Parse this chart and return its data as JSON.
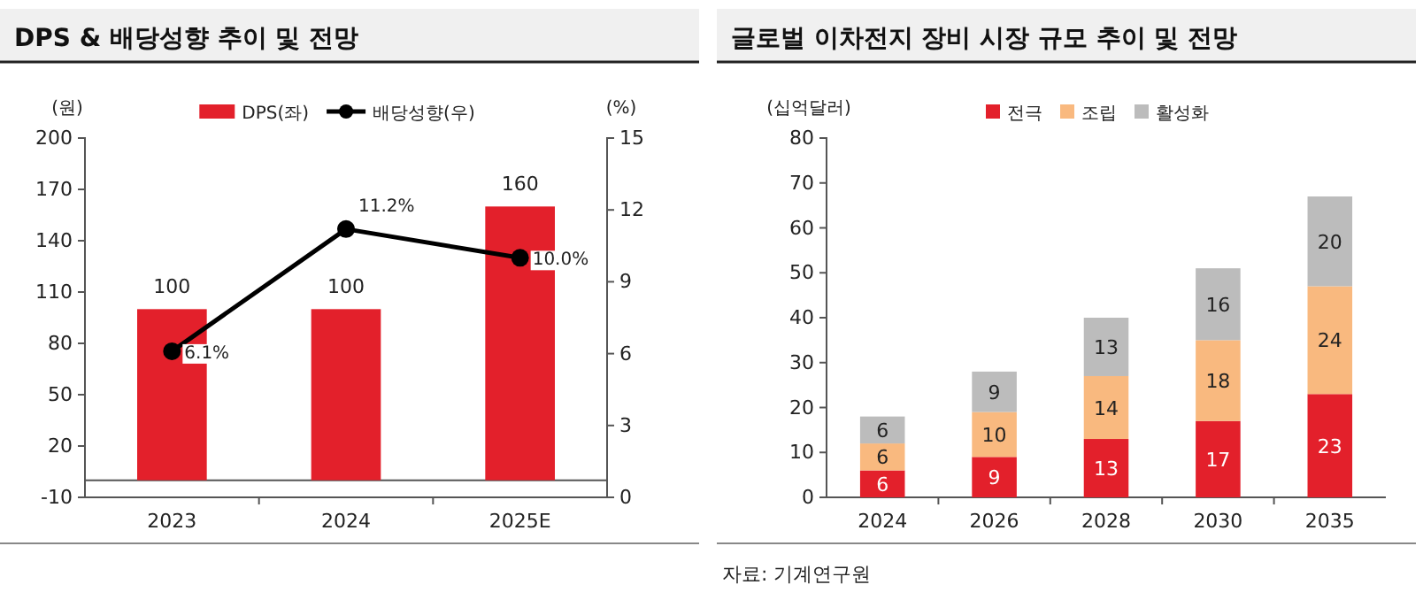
{
  "chart_data": [
    {
      "type": "bar",
      "title": "DPS & 배당성향 추이 및 전망",
      "ylabel": "(원)",
      "y2label": "(%)",
      "categories": [
        "2023",
        "2024",
        "2025E"
      ],
      "series": [
        {
          "name": "DPS(좌)",
          "type": "bar",
          "color": "#e3202b",
          "values": [
            100,
            100,
            160
          ],
          "value_labels": [
            "100",
            "100",
            "160"
          ]
        },
        {
          "name": "배당성향(우)",
          "type": "line",
          "axis": "y2",
          "color": "#000000",
          "values": [
            6.1,
            11.2,
            10.0
          ],
          "value_labels": [
            "6.1%",
            "11.2%",
            "10.0%"
          ]
        }
      ],
      "ylim": [
        -10,
        200
      ],
      "yticks": [
        -10,
        20,
        50,
        80,
        110,
        140,
        170,
        200
      ],
      "y2lim": [
        0,
        15
      ],
      "y2ticks": [
        0,
        3,
        6,
        9,
        12,
        15
      ],
      "legend": "top",
      "marker": "circle",
      "grid": false
    },
    {
      "type": "bar",
      "title": "글로벌 이차전지 장비 시장 규모 추이 및 전망",
      "ylabel": "(십억달러)",
      "categories": [
        "2024",
        "2026",
        "2028",
        "2030",
        "2035"
      ],
      "series": [
        {
          "name": "전극",
          "color": "#e3202b",
          "values": [
            6,
            9,
            13,
            17,
            23
          ]
        },
        {
          "name": "조립",
          "color": "#f9b97f",
          "values": [
            6,
            10,
            14,
            18,
            24
          ]
        },
        {
          "name": "활성화",
          "color": "#bcbcbc",
          "values": [
            6,
            9,
            13,
            16,
            20
          ]
        }
      ],
      "stacked": true,
      "data_labels": true,
      "ylim": [
        0,
        80
      ],
      "yticks": [
        0,
        10,
        20,
        30,
        40,
        50,
        60,
        70,
        80
      ],
      "legend": "top",
      "grid": false,
      "annotations": [
        "자료: 기계연구원"
      ]
    }
  ]
}
